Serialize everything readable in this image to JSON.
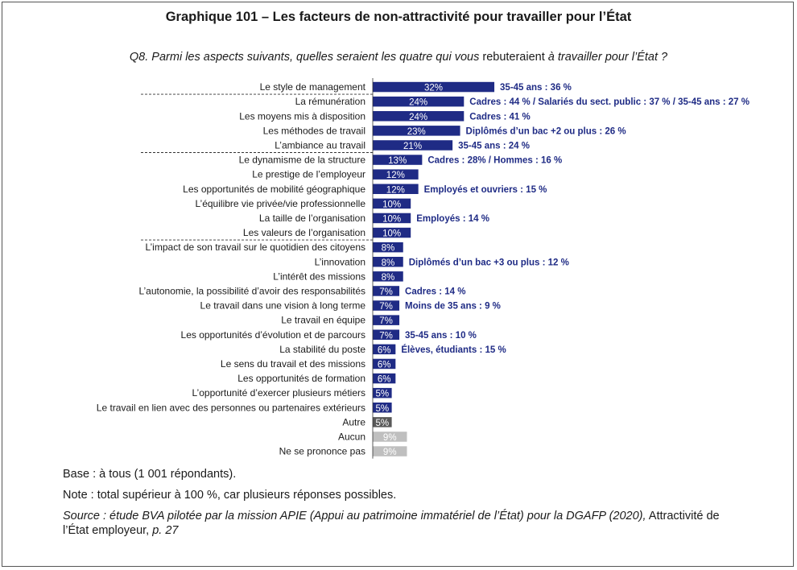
{
  "title": "Graphique 101 – Les facteurs de non-attractivité pour travailler pour l’État",
  "question": {
    "part1": "Q8. Parmi les aspects suivants, quelles seraient les quatre qui vous ",
    "part2": "rebuteraient",
    "part3": " à travailler pour l’État ?"
  },
  "notes": {
    "base": "Base : à tous (1 001 répondants).",
    "note": "Note : total supérieur à 100 %, car plusieurs réponses possibles.",
    "source_italic": "Source : étude BVA pilotée par la mission APIE (Appui au patrimoine immatériel de l’État) pour la DGAFP (2020),",
    "source_plain": " Attractivité de l’État employeur,",
    "source_page": " p. 27"
  },
  "colors": {
    "main": "#1f2b85",
    "other": "#595959",
    "none": "#bfbfbf",
    "annotation": "#1f2b85"
  },
  "chart_data": {
    "type": "bar",
    "orientation": "horizontal",
    "unit": "%",
    "categories": [
      "Le style de management",
      "La rémunération",
      "Les moyens mis à disposition",
      "Les méthodes de travail",
      "L’ambiance au travail",
      "Le dynamisme de la structure",
      "Le prestige de l’employeur",
      "Les opportunités de mobilité géographique",
      "L’équilibre vie privée/vie professionnelle",
      "La taille de l’organisation",
      "Les valeurs de l’organisation",
      "L’impact de son travail sur le quotidien des citoyens",
      "L’innovation",
      "L’intérêt des missions",
      "L’autonomie, la possibilité d’avoir des responsabilités",
      "Le travail dans une vision à long terme",
      "Le travail en équipe",
      "Les opportunités d’évolution et de parcours",
      "La stabilité du poste",
      "Le sens du travail et des missions",
      "Les opportunités de formation",
      "L’opportunité d’exercer plusieurs métiers",
      "Le travail en lien avec des personnes ou partenaires extérieurs",
      "Autre",
      "Aucun",
      "Ne se prononce pas"
    ],
    "values": [
      32,
      24,
      24,
      23,
      21,
      13,
      12,
      12,
      10,
      10,
      10,
      8,
      8,
      8,
      7,
      7,
      7,
      7,
      6,
      6,
      6,
      5,
      5,
      5,
      9,
      9
    ],
    "value_labels": [
      "32%",
      "24%",
      "24%",
      "23%",
      "21%",
      "13%",
      "12%",
      "12%",
      "10%",
      "10%",
      "10%",
      "8%",
      "8%",
      "8%",
      "7%",
      "7%",
      "7%",
      "7%",
      "6%",
      "6%",
      "6%",
      "5%",
      "5%",
      "5%",
      "9%",
      "9%"
    ],
    "bar_style": [
      "main",
      "main",
      "main",
      "main",
      "main",
      "main",
      "main",
      "main",
      "main",
      "main",
      "main",
      "main",
      "main",
      "main",
      "main",
      "main",
      "main",
      "main",
      "main",
      "main",
      "main",
      "main",
      "main",
      "other",
      "none",
      "none"
    ],
    "annotations": [
      "35-45 ans : 36 %",
      "Cadres : 44 % / Salariés du sect. public : 37 % / 35-45 ans : 27 %",
      "Cadres : 41 %",
      "Diplômés d’un bac +2 ou plus : 26 %",
      "35-45 ans : 24 %",
      "Cadres : 28% / Hommes : 16 %",
      "",
      "Employés et ouvriers : 15 %",
      "",
      "Employés : 14 %",
      "",
      "",
      "Diplômés d’un bac +3 ou plus : 12 %",
      "",
      "Cadres : 14 %",
      "Moins de 35 ans : 9 %",
      "",
      "35-45 ans : 10 %",
      "Élèves, étudiants : 15 %",
      "",
      "",
      "",
      "",
      "",
      "",
      ""
    ],
    "separators_after": [
      0,
      4,
      10
    ],
    "grid": false
  }
}
